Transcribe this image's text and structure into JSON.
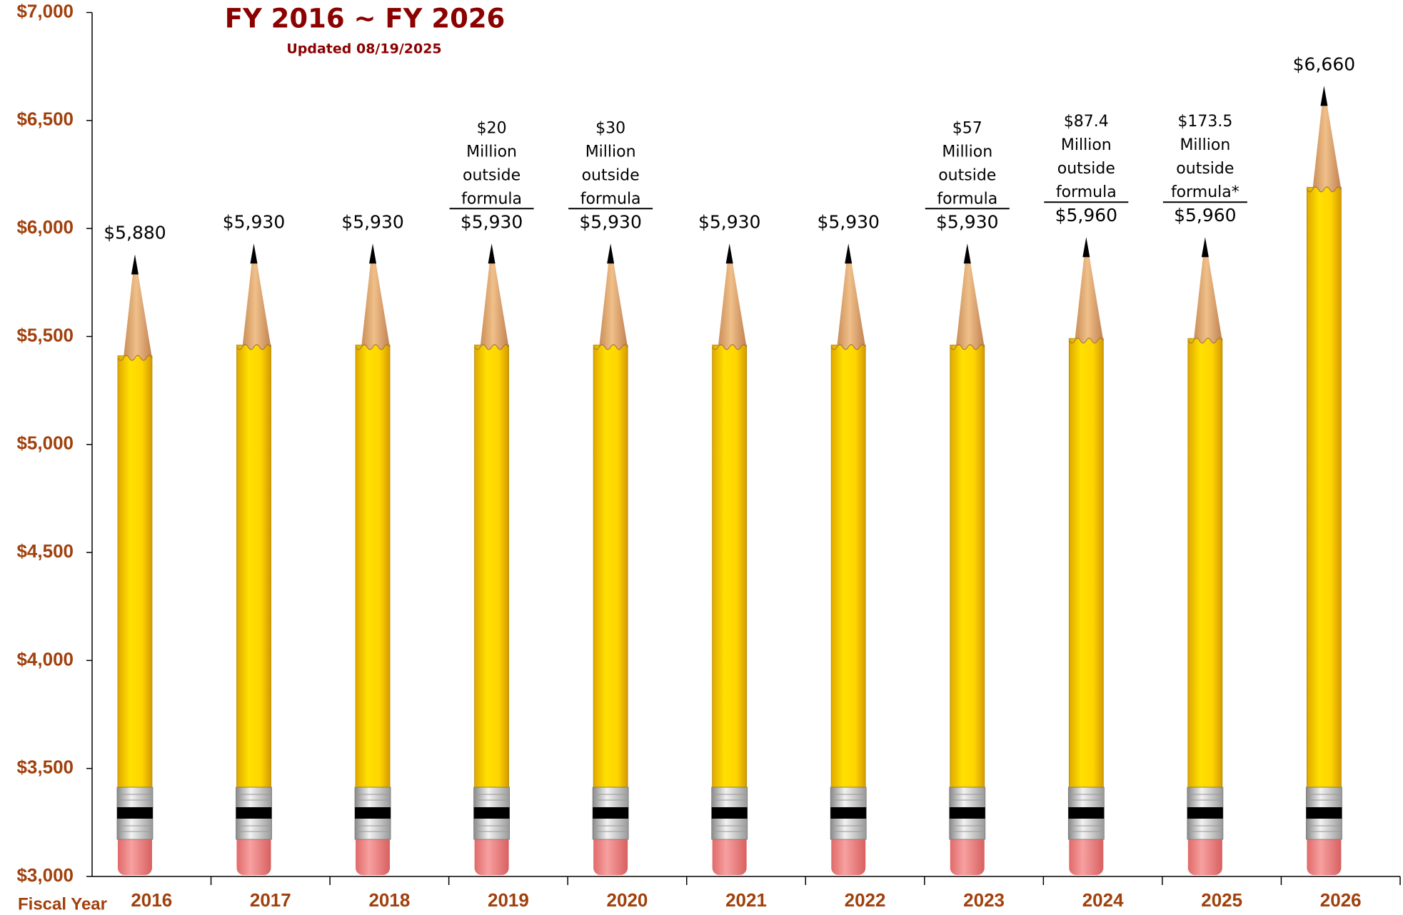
{
  "chart_data": {
    "type": "pencil",
    "title": "FY 2016 ~ FY 2026",
    "subtitle": "Updated 08/19/2025",
    "x_label": "Fiscal Year",
    "categories": [
      "2016",
      "2017",
      "2018",
      "2019",
      "2020",
      "2021",
      "2022",
      "2023",
      "2024",
      "2025",
      "2026"
    ],
    "values": [
      5880,
      5930,
      5930,
      5930,
      5930,
      5930,
      5930,
      5930,
      5960,
      5960,
      6660
    ],
    "value_labels": [
      "$5,880",
      "$5,930",
      "$5,930",
      "$5,930",
      "$5,930",
      "$5,930",
      "$5,930",
      "$5,930",
      "$5,960",
      "$5,960",
      "$6,660"
    ],
    "annotations": [
      null,
      null,
      null,
      [
        "$20",
        "Million",
        "outside",
        "formula"
      ],
      [
        "$30",
        "Million",
        "outside",
        "formula"
      ],
      null,
      null,
      [
        "$57",
        "Million",
        "outside",
        "formula"
      ],
      [
        "$87.4",
        "Million",
        "outside",
        "formula"
      ],
      [
        "$173.5",
        "Million",
        "outside",
        "formula*"
      ],
      null
    ],
    "ylim": [
      3000,
      7000
    ],
    "yticks": [
      {
        "value": 3000,
        "label": "$3,000"
      },
      {
        "value": 3500,
        "label": "$3,500"
      },
      {
        "value": 4000,
        "label": "$4,000"
      },
      {
        "value": 4500,
        "label": "$4,500"
      },
      {
        "value": 5000,
        "label": "$5,000"
      },
      {
        "value": 5500,
        "label": "$5,500"
      },
      {
        "value": 6000,
        "label": "$6,000"
      },
      {
        "value": 6500,
        "label": "$6,500"
      },
      {
        "value": 7000,
        "label": "$7,000"
      }
    ],
    "grid": false,
    "color": "#ffd700"
  }
}
